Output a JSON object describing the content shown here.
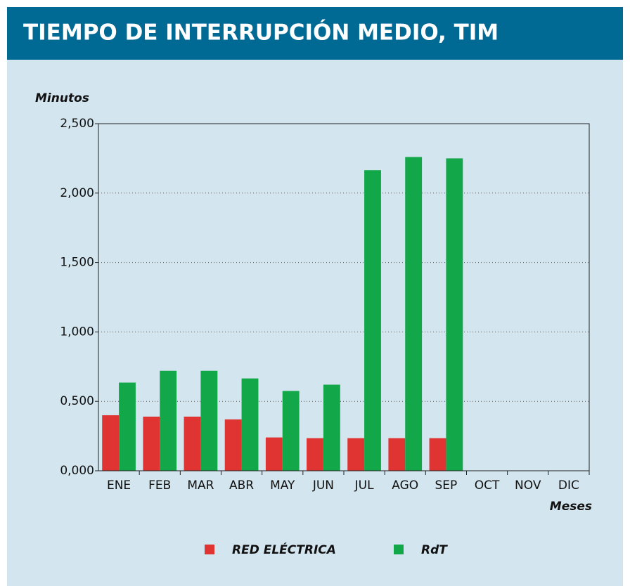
{
  "chart_data": {
    "type": "bar",
    "title": "TIEMPO DE INTERRUPCIÓN MEDIO, TIM",
    "y_label": "Minutos",
    "x_label": "Meses",
    "categories": [
      "ENE",
      "FEB",
      "MAR",
      "ABR",
      "MAY",
      "JUN",
      "JUL",
      "AGO",
      "SEP",
      "OCT",
      "NOV",
      "DIC"
    ],
    "series": [
      {
        "name": "RED ELÉCTRICA",
        "color": "#e03432",
        "values": [
          0.4,
          0.39,
          0.39,
          0.37,
          0.24,
          0.235,
          0.235,
          0.235,
          0.235,
          null,
          null,
          null
        ]
      },
      {
        "name": "RdT",
        "color": "#12a84a",
        "values": [
          0.635,
          0.72,
          0.72,
          0.665,
          0.575,
          0.62,
          2.165,
          2.26,
          2.25,
          null,
          null,
          null
        ]
      }
    ],
    "ylim": [
      0,
      2.5
    ],
    "yticks": [
      {
        "value": 0,
        "label": "0,000"
      },
      {
        "value": 0.5,
        "label": "0,500"
      },
      {
        "value": 1,
        "label": "1,000"
      },
      {
        "value": 1.5,
        "label": "1,500"
      },
      {
        "value": 2,
        "label": "2,000"
      },
      {
        "value": 2.5,
        "label": "2,500"
      }
    ],
    "grid": true
  }
}
